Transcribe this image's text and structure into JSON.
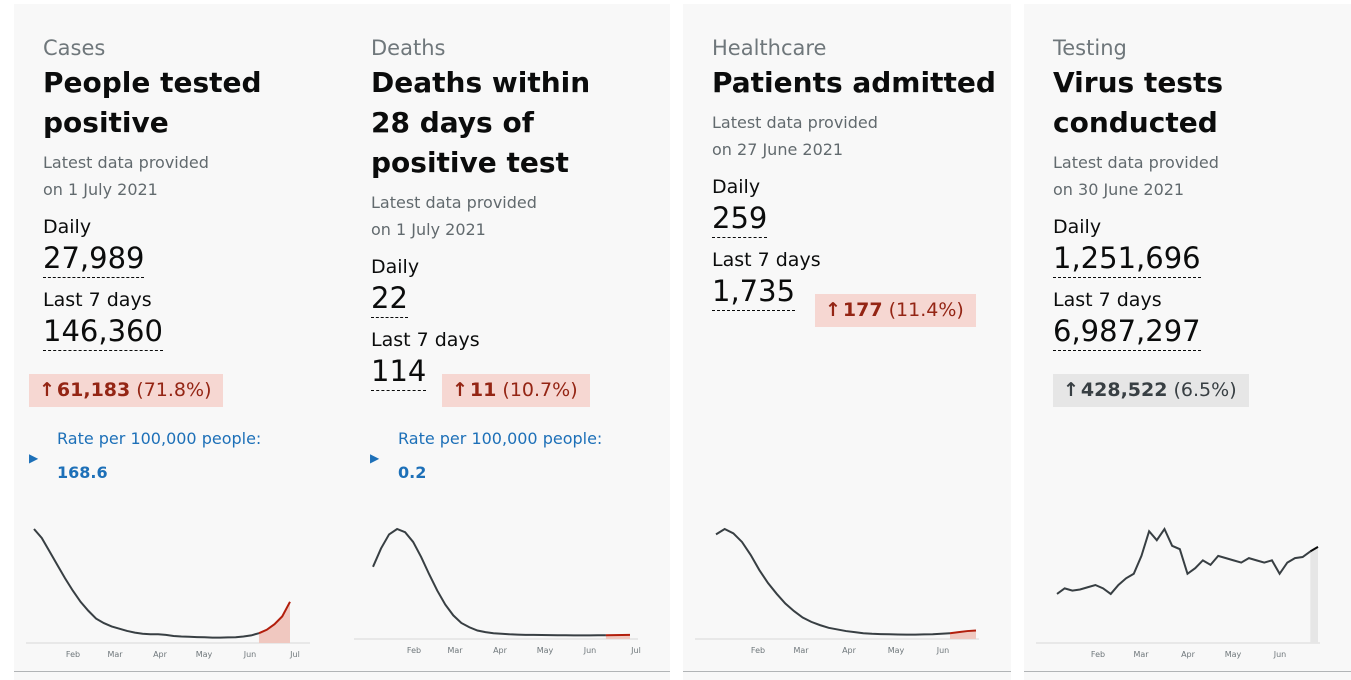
{
  "cards": [
    {
      "category": "Cases",
      "title": "People tested positive",
      "updated": "Latest data provided on 1 July 2021",
      "daily_label": "Daily",
      "daily_value": "27,989",
      "week_label": "Last 7 days",
      "week_value": "146,360",
      "change": {
        "abs": "61,183",
        "pct": "(71.8%)",
        "direction": "up"
      },
      "rate": {
        "label": "Rate per 100,000 people:",
        "value": "168.6"
      }
    },
    {
      "category": "Deaths",
      "title": "Deaths within 28 days of positive test",
      "updated": "Latest data provided on 1 July 2021",
      "daily_label": "Daily",
      "daily_value": "22",
      "week_label": "Last 7 days",
      "week_value": "114",
      "change": {
        "abs": "11",
        "pct": "(10.7%)",
        "direction": "up"
      },
      "rate": {
        "label": "Rate per 100,000 people:",
        "value": "0.2"
      }
    },
    {
      "category": "Healthcare",
      "title": "Patients admitted",
      "updated": "Latest data provided on 27 June 2021",
      "daily_label": "Daily",
      "daily_value": "259",
      "week_label": "Last 7 days",
      "week_value": "1,735",
      "change": {
        "abs": "177",
        "pct": "(11.4%)",
        "direction": "up"
      }
    },
    {
      "category": "Testing",
      "title": "Virus tests conducted",
      "updated": "Latest data provided on 30 June 2021",
      "daily_label": "Daily",
      "daily_value": "1,251,696",
      "week_label": "Last 7 days",
      "week_value": "6,987,297",
      "change": {
        "abs": "428,522",
        "pct": "(6.5%)",
        "direction": "neutral"
      }
    }
  ],
  "chart_data": [
    {
      "type": "line",
      "x_ticks": [
        "Feb",
        "Mar",
        "Apr",
        "May",
        "Jun",
        "Jul"
      ],
      "series": [
        {
          "values": [
            1.0,
            0.92,
            0.8,
            0.68,
            0.56,
            0.45,
            0.35,
            0.27,
            0.2,
            0.16,
            0.13,
            0.11,
            0.09,
            0.075,
            0.065,
            0.06,
            0.06,
            0.055,
            0.045,
            0.04,
            0.038,
            0.035,
            0.033,
            0.03,
            0.03,
            0.032,
            0.034,
            0.04,
            0.05,
            0.07,
            0.1,
            0.15,
            0.22,
            0.35
          ]
        }
      ],
      "highlight_recent": true
    },
    {
      "type": "line",
      "x_ticks": [
        "Feb",
        "Mar",
        "Apr",
        "May",
        "Jun",
        "Jul"
      ],
      "series": [
        {
          "values": [
            0.65,
            0.82,
            0.95,
            1.0,
            0.97,
            0.88,
            0.74,
            0.58,
            0.43,
            0.3,
            0.2,
            0.13,
            0.09,
            0.06,
            0.045,
            0.035,
            0.03,
            0.025,
            0.022,
            0.02,
            0.02,
            0.018,
            0.017,
            0.016,
            0.016,
            0.015,
            0.015,
            0.015,
            0.016,
            0.016,
            0.017,
            0.018,
            0.02
          ]
        }
      ],
      "highlight_recent": true
    },
    {
      "type": "line",
      "x_ticks": [
        "Feb",
        "Mar",
        "Apr",
        "May",
        "Jun"
      ],
      "series": [
        {
          "values": [
            0.95,
            1.0,
            0.96,
            0.88,
            0.76,
            0.62,
            0.5,
            0.4,
            0.31,
            0.24,
            0.18,
            0.14,
            0.11,
            0.085,
            0.07,
            0.055,
            0.045,
            0.035,
            0.03,
            0.027,
            0.025,
            0.023,
            0.022,
            0.022,
            0.024,
            0.026,
            0.03,
            0.035,
            0.045,
            0.055,
            0.06
          ]
        }
      ],
      "highlight_recent": true
    },
    {
      "type": "line",
      "x_ticks": [
        "Feb",
        "Mar",
        "Apr",
        "May",
        "Jun"
      ],
      "series": [
        {
          "values": [
            0.42,
            0.47,
            0.45,
            0.46,
            0.48,
            0.5,
            0.47,
            0.42,
            0.5,
            0.56,
            0.6,
            0.76,
            0.98,
            0.9,
            1.0,
            0.85,
            0.82,
            0.6,
            0.65,
            0.72,
            0.68,
            0.76,
            0.74,
            0.72,
            0.7,
            0.74,
            0.72,
            0.7,
            0.72,
            0.6,
            0.7,
            0.74,
            0.75,
            0.8,
            0.84
          ]
        }
      ],
      "highlight_recent": true
    }
  ]
}
